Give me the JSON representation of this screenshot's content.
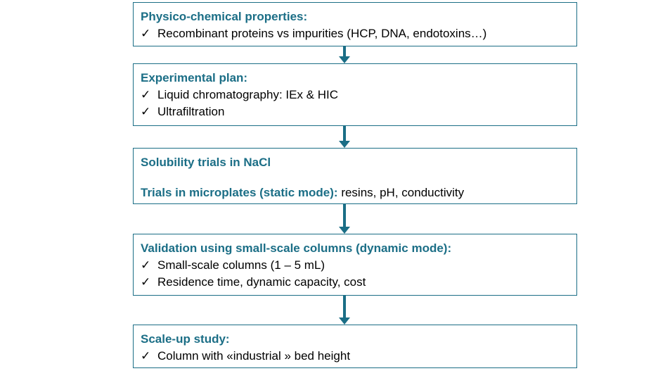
{
  "marker": "✓",
  "nodes": [
    {
      "title": "Physico-chemical properties:",
      "items": [
        "Recombinant proteins vs impurities (HCP, DNA, endotoxins…)"
      ]
    },
    {
      "title": "Experimental plan:",
      "items": [
        "Liquid chromatography: IEx & HIC",
        "Ultrafiltration"
      ]
    },
    {
      "title": "Solubility trials in NaCl",
      "subtitle": "Trials in microplates (static mode):",
      "subtitle_rest": "resins, pH, conductivity"
    },
    {
      "title": "Validation using small-scale columns (dynamic mode):",
      "items": [
        "Small-scale columns (1 – 5 mL)",
        "Residence time, dynamic capacity, cost"
      ]
    },
    {
      "title": "Scale-up study:",
      "items": [
        "Column with «industrial » bed height"
      ]
    }
  ]
}
